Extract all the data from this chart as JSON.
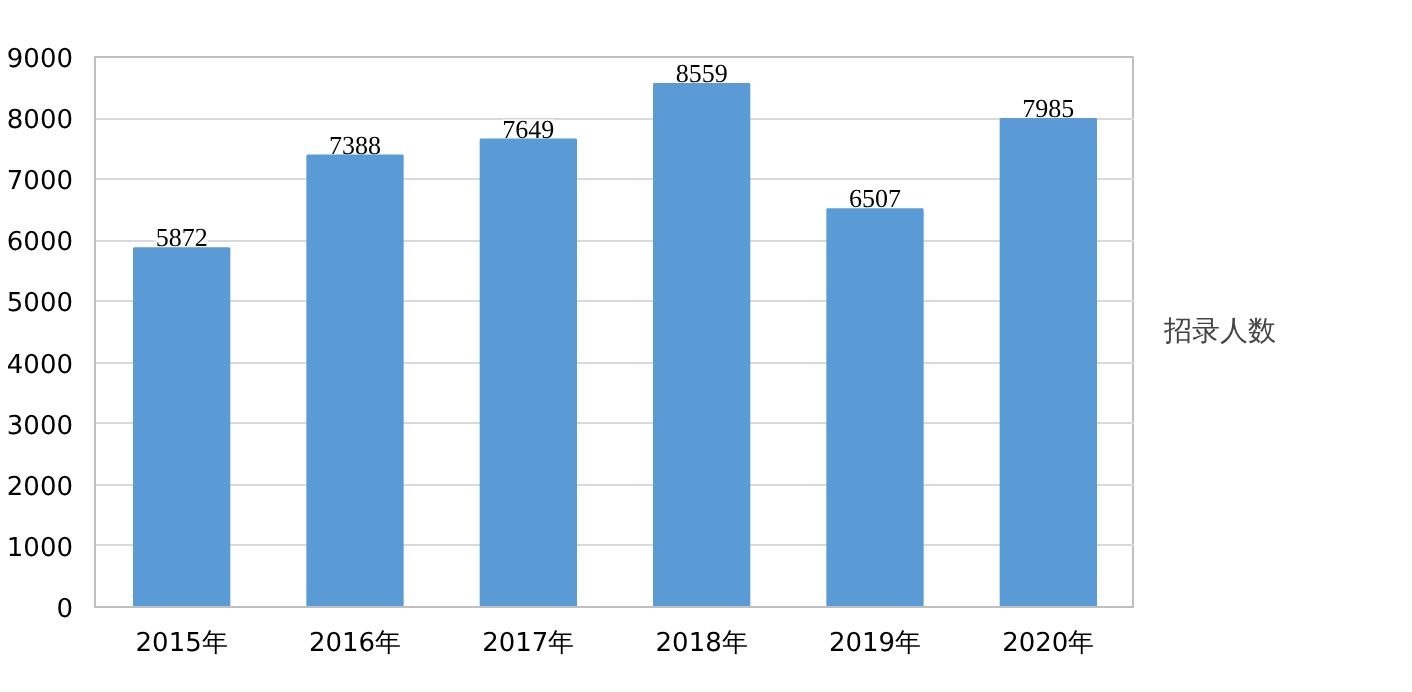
{
  "chart_data": {
    "type": "bar",
    "categories": [
      "2015年",
      "2016年",
      "2017年",
      "2018年",
      "2019年",
      "2020年"
    ],
    "series": [
      {
        "name": "招录人数",
        "color": "#5b9bd5",
        "values": [
          5872,
          7388,
          7649,
          8559,
          6507,
          7985
        ]
      }
    ],
    "ylim": [
      0,
      9000
    ],
    "yticks": [
      0,
      1000,
      2000,
      3000,
      4000,
      5000,
      6000,
      7000,
      8000,
      9000
    ],
    "grid": "y",
    "legend": "right",
    "data_labels": true
  }
}
